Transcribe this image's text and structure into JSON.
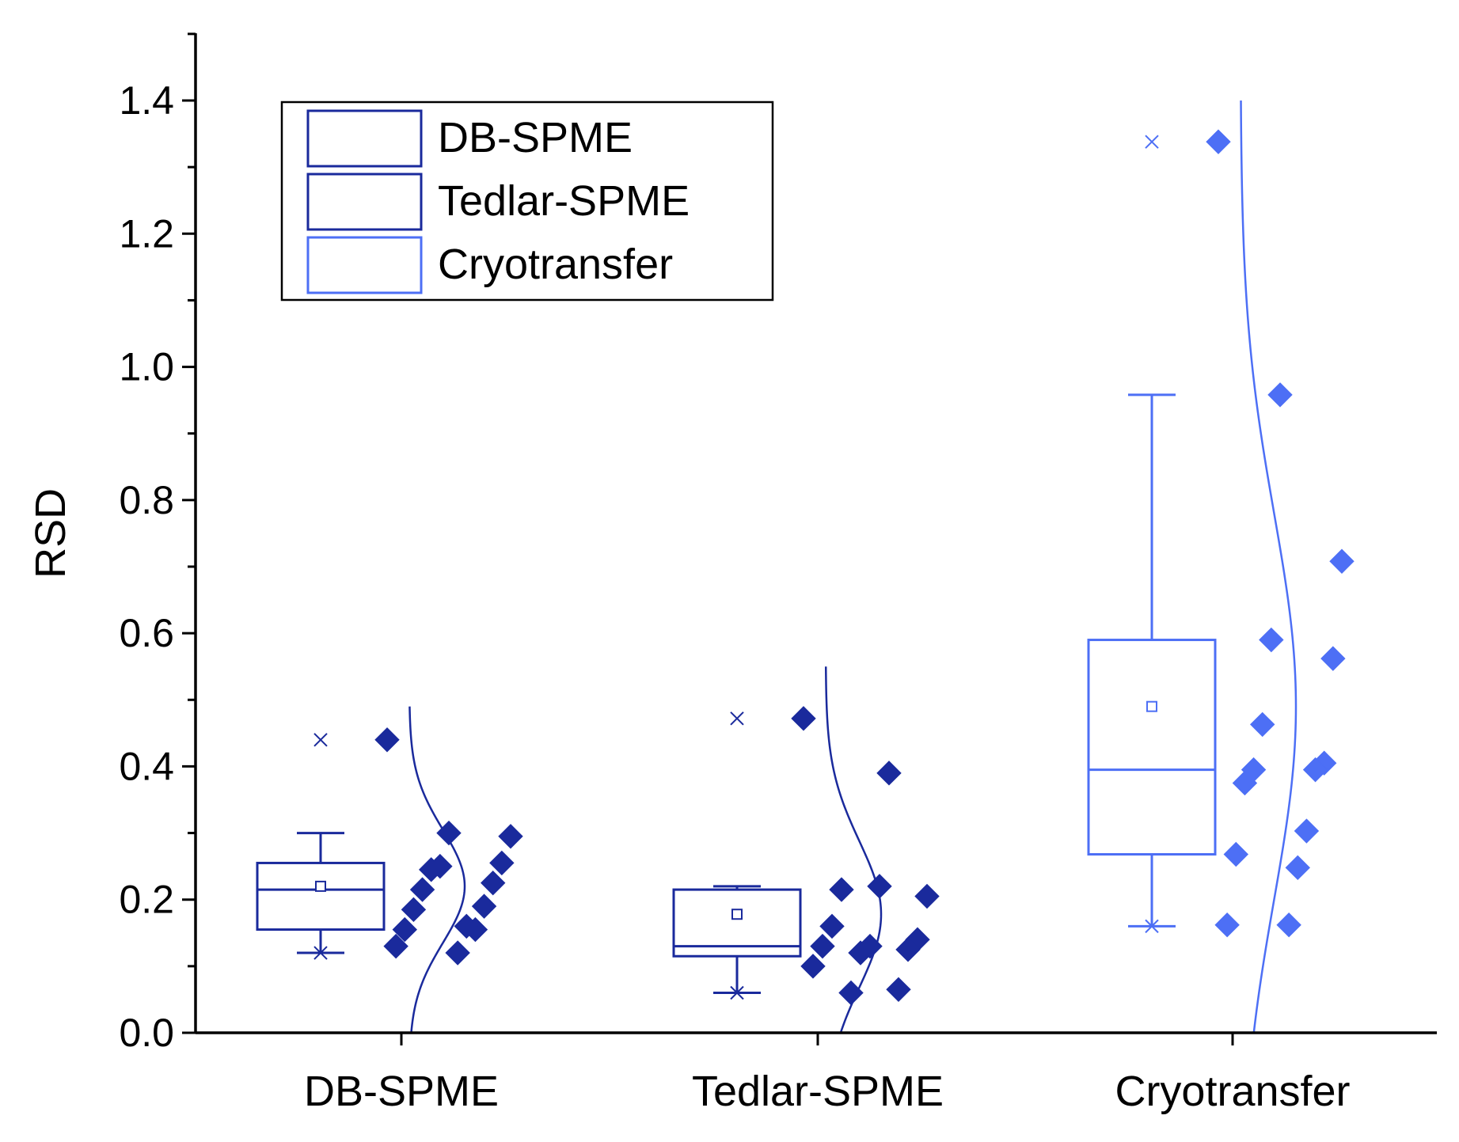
{
  "chart_data": {
    "type": "box",
    "title": "",
    "xlabel": "",
    "ylabel": "RSD",
    "ylim": [
      0,
      1.5
    ],
    "yticks": [
      0.0,
      0.2,
      0.4,
      0.6,
      0.8,
      1.0,
      1.2,
      1.4
    ],
    "ytick_labels": [
      "0.0",
      "0.2",
      "0.4",
      "0.6",
      "0.8",
      "1.0",
      "1.2",
      "1.4"
    ],
    "categories": [
      "DB-SPME",
      "Tedlar-SPME",
      "Cryotransfer"
    ],
    "legend": {
      "position": "top-left",
      "entries": [
        "DB-SPME",
        "Tedlar-SPME",
        "Cryotransfer"
      ]
    },
    "series": [
      {
        "name": "DB-SPME",
        "color": "#1a2a9c",
        "box": {
          "q1": 0.155,
          "median": 0.215,
          "q3": 0.255,
          "mean": 0.22,
          "whisker_low": 0.12,
          "whisker_high": 0.3,
          "min": 0.12,
          "max": 0.44
        },
        "points": [
          0.44,
          0.3,
          0.295,
          0.25,
          0.255,
          0.245,
          0.225,
          0.215,
          0.19,
          0.185,
          0.155,
          0.155,
          0.16,
          0.13,
          0.12
        ],
        "normal_curve": {
          "mean": 0.22,
          "sd": 0.085,
          "y_range": [
            0.0,
            0.49
          ]
        }
      },
      {
        "name": "Tedlar-SPME",
        "color": "#1a2a9c",
        "box": {
          "q1": 0.115,
          "median": 0.13,
          "q3": 0.215,
          "mean": 0.178,
          "whisker_low": 0.06,
          "whisker_high": 0.22,
          "min": 0.06,
          "max": 0.472
        },
        "points": [
          0.472,
          0.39,
          0.215,
          0.205,
          0.22,
          0.16,
          0.14,
          0.13,
          0.13,
          0.125,
          0.12,
          0.1,
          0.065,
          0.06
        ],
        "normal_curve": {
          "mean": 0.178,
          "sd": 0.11,
          "y_range": [
            0.0,
            0.55
          ]
        }
      },
      {
        "name": "Cryotransfer",
        "color": "#4d6ff5",
        "box": {
          "q1": 0.268,
          "median": 0.395,
          "q3": 0.59,
          "mean": 0.49,
          "whisker_low": 0.16,
          "whisker_high": 0.958,
          "min": 0.16,
          "max": 1.338
        },
        "points": [
          1.338,
          0.958,
          0.708,
          0.59,
          0.562,
          0.463,
          0.405,
          0.395,
          0.395,
          0.375,
          0.303,
          0.268,
          0.248,
          0.162,
          0.162
        ],
        "normal_curve": {
          "mean": 0.49,
          "sd": 0.29,
          "y_range": [
            0.0,
            1.4
          ]
        }
      }
    ]
  }
}
